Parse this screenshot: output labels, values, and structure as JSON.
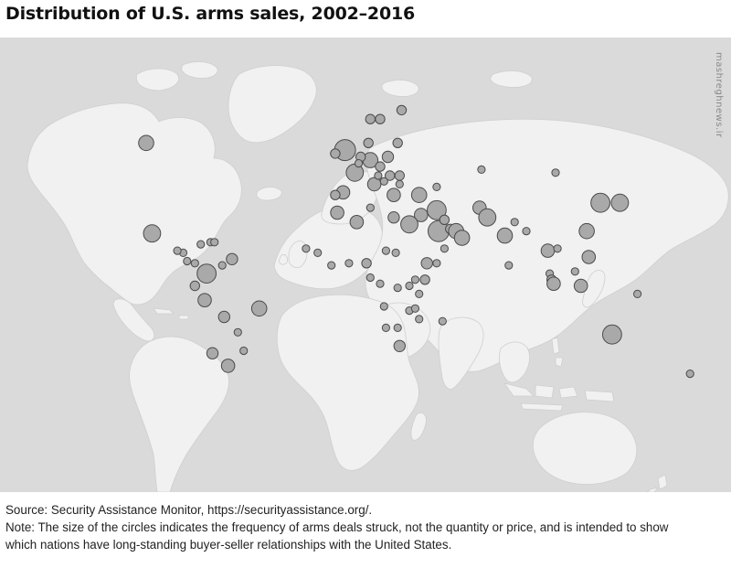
{
  "title": "Distribution of U.S. arms sales, 2002–2016",
  "watermark": "mashreghnews.ir",
  "source": "Source: Security Assistance Monitor, https://securityassistance.org/.",
  "note_line1": "Note: The size of the circles indicates the frequency of arms deals struck, not the quantity or price, and is intended to show",
  "note_line2": "which nations have long-standing buyer-seller relationships with the United States.",
  "colors": {
    "land": "#f1f1f1",
    "ocean": "#dadada",
    "border": "#cfcfcf",
    "circle_fill": "#a9a9a9",
    "circle_stroke": "#4a4a4a"
  },
  "circles": [
    {
      "lon": -105,
      "lat": 56,
      "size": 6
    },
    {
      "lon": -102,
      "lat": 23,
      "size": 7
    },
    {
      "lon": -74,
      "lat": 4,
      "size": 8
    },
    {
      "lon": -66,
      "lat": 8,
      "size": 2
    },
    {
      "lon": -47,
      "lat": -13,
      "size": 6
    },
    {
      "lon": -75,
      "lat": -9,
      "size": 5
    },
    {
      "lon": -65,
      "lat": -17,
      "size": 4
    },
    {
      "lon": -71,
      "lat": -33,
      "size": 4
    },
    {
      "lon": -63,
      "lat": -38,
      "size": 5
    },
    {
      "lon": -58,
      "lat": -24,
      "size": 2
    },
    {
      "lon": -55,
      "lat": -32,
      "size": 2
    },
    {
      "lon": -80,
      "lat": -2,
      "size": 3
    },
    {
      "lon": -84,
      "lat": 10,
      "size": 2
    },
    {
      "lon": -86,
      "lat": 14,
      "size": 2
    },
    {
      "lon": -89,
      "lat": 15,
      "size": 2
    },
    {
      "lon": -77,
      "lat": 18,
      "size": 2
    },
    {
      "lon": -80,
      "lat": 9,
      "size": 2
    },
    {
      "lon": -61,
      "lat": 11,
      "size": 4
    },
    {
      "lon": -72,
      "lat": 19,
      "size": 2
    },
    {
      "lon": -70,
      "lat": 19,
      "size": 2
    },
    {
      "lon": -3,
      "lat": 54,
      "size": 9
    },
    {
      "lon": 2,
      "lat": 47,
      "size": 7
    },
    {
      "lon": -8,
      "lat": 53,
      "size": 3
    },
    {
      "lon": -4,
      "lat": 40,
      "size": 5
    },
    {
      "lon": -8,
      "lat": 39,
      "size": 3
    },
    {
      "lon": 10,
      "lat": 51,
      "size": 6
    },
    {
      "lon": 5,
      "lat": 52,
      "size": 3
    },
    {
      "lon": 4,
      "lat": 50,
      "size": 2
    },
    {
      "lon": 12,
      "lat": 43,
      "size": 5
    },
    {
      "lon": 9,
      "lat": 56,
      "size": 3
    },
    {
      "lon": 10,
      "lat": 62,
      "size": 3
    },
    {
      "lon": 15,
      "lat": 62,
      "size": 3
    },
    {
      "lon": 26,
      "lat": 64,
      "size": 3
    },
    {
      "lon": 19,
      "lat": 52,
      "size": 4
    },
    {
      "lon": 15,
      "lat": 49,
      "size": 3
    },
    {
      "lon": 20,
      "lat": 46,
      "size": 3
    },
    {
      "lon": 25,
      "lat": 46,
      "size": 3
    },
    {
      "lon": 25,
      "lat": 43,
      "size": 2
    },
    {
      "lon": 22,
      "lat": 39,
      "size": 5
    },
    {
      "lon": 17,
      "lat": 44,
      "size": 2
    },
    {
      "lon": 24,
      "lat": 56,
      "size": 3
    },
    {
      "lon": 14,
      "lat": 46,
      "size": 2
    },
    {
      "lon": 35,
      "lat": 39,
      "size": 6
    },
    {
      "lon": 44,
      "lat": 42,
      "size": 2
    },
    {
      "lon": 67,
      "lat": 48,
      "size": 2
    },
    {
      "lon": 44,
      "lat": 33,
      "size": 8
    },
    {
      "lon": 36,
      "lat": 31,
      "size": 5
    },
    {
      "lon": 45,
      "lat": 24,
      "size": 9
    },
    {
      "lon": 30,
      "lat": 27,
      "size": 7
    },
    {
      "lon": 22,
      "lat": 30,
      "size": 4
    },
    {
      "lon": 3,
      "lat": 28,
      "size": 5
    },
    {
      "lon": 10,
      "lat": 34,
      "size": 2
    },
    {
      "lon": -7,
      "lat": 32,
      "size": 5
    },
    {
      "lon": 48,
      "lat": 29,
      "size": 3
    },
    {
      "lon": 51,
      "lat": 25,
      "size": 3
    },
    {
      "lon": 54,
      "lat": 24,
      "size": 6
    },
    {
      "lon": 57,
      "lat": 21,
      "size": 6
    },
    {
      "lon": 48,
      "lat": 16,
      "size": 2
    },
    {
      "lon": 66,
      "lat": 34,
      "size": 5
    },
    {
      "lon": 70,
      "lat": 30,
      "size": 7
    },
    {
      "lon": 79,
      "lat": 22,
      "size": 6
    },
    {
      "lon": 90,
      "lat": 24,
      "size": 2
    },
    {
      "lon": 84,
      "lat": 28,
      "size": 2
    },
    {
      "lon": 81,
      "lat": 8,
      "size": 2
    },
    {
      "lon": 101,
      "lat": 15,
      "size": 5
    },
    {
      "lon": 106,
      "lat": 16,
      "size": 2
    },
    {
      "lon": 102,
      "lat": 4,
      "size": 2
    },
    {
      "lon": 103,
      "lat": 1,
      "size": 3
    },
    {
      "lon": 104,
      "lat": -1,
      "size": 5
    },
    {
      "lon": 118,
      "lat": -2,
      "size": 5
    },
    {
      "lon": 115,
      "lat": 5,
      "size": 2
    },
    {
      "lon": 121,
      "lat": 24,
      "size": 6
    },
    {
      "lon": 122,
      "lat": 12,
      "size": 5
    },
    {
      "lon": 128,
      "lat": 36,
      "size": 8
    },
    {
      "lon": 138,
      "lat": 36,
      "size": 7
    },
    {
      "lon": 105,
      "lat": 47,
      "size": 2
    },
    {
      "lon": 134,
      "lat": -25,
      "size": 8
    },
    {
      "lon": 174,
      "lat": -41,
      "size": 2
    },
    {
      "lon": 147,
      "lat": -6,
      "size": 2
    },
    {
      "lon": -17,
      "lat": 14,
      "size": 2
    },
    {
      "lon": -10,
      "lat": 8,
      "size": 2
    },
    {
      "lon": -1,
      "lat": 9,
      "size": 2
    },
    {
      "lon": 8,
      "lat": 9,
      "size": 3
    },
    {
      "lon": 18,
      "lat": 15,
      "size": 2
    },
    {
      "lon": 23,
      "lat": 14,
      "size": 2
    },
    {
      "lon": 39,
      "lat": 9,
      "size": 4
    },
    {
      "lon": 44,
      "lat": 9,
      "size": 2
    },
    {
      "lon": 38,
      "lat": 1,
      "size": 3
    },
    {
      "lon": 33,
      "lat": 1,
      "size": 2
    },
    {
      "lon": 30,
      "lat": -2,
      "size": 2
    },
    {
      "lon": 24,
      "lat": -3,
      "size": 2
    },
    {
      "lon": 15,
      "lat": -1,
      "size": 2
    },
    {
      "lon": 10,
      "lat": 2,
      "size": 2
    },
    {
      "lon": 35,
      "lat": -6,
      "size": 2
    },
    {
      "lon": 17,
      "lat": -12,
      "size": 2
    },
    {
      "lon": 30,
      "lat": -14,
      "size": 2
    },
    {
      "lon": 33,
      "lat": -13,
      "size": 2
    },
    {
      "lon": 35,
      "lat": -18,
      "size": 2
    },
    {
      "lon": 24,
      "lat": -22,
      "size": 2
    },
    {
      "lon": 25,
      "lat": -30,
      "size": 4
    },
    {
      "lon": 47,
      "lat": -19,
      "size": 2
    },
    {
      "lon": 18,
      "lat": -22,
      "size": 2
    },
    {
      "lon": -23,
      "lat": 16,
      "size": 2
    }
  ]
}
